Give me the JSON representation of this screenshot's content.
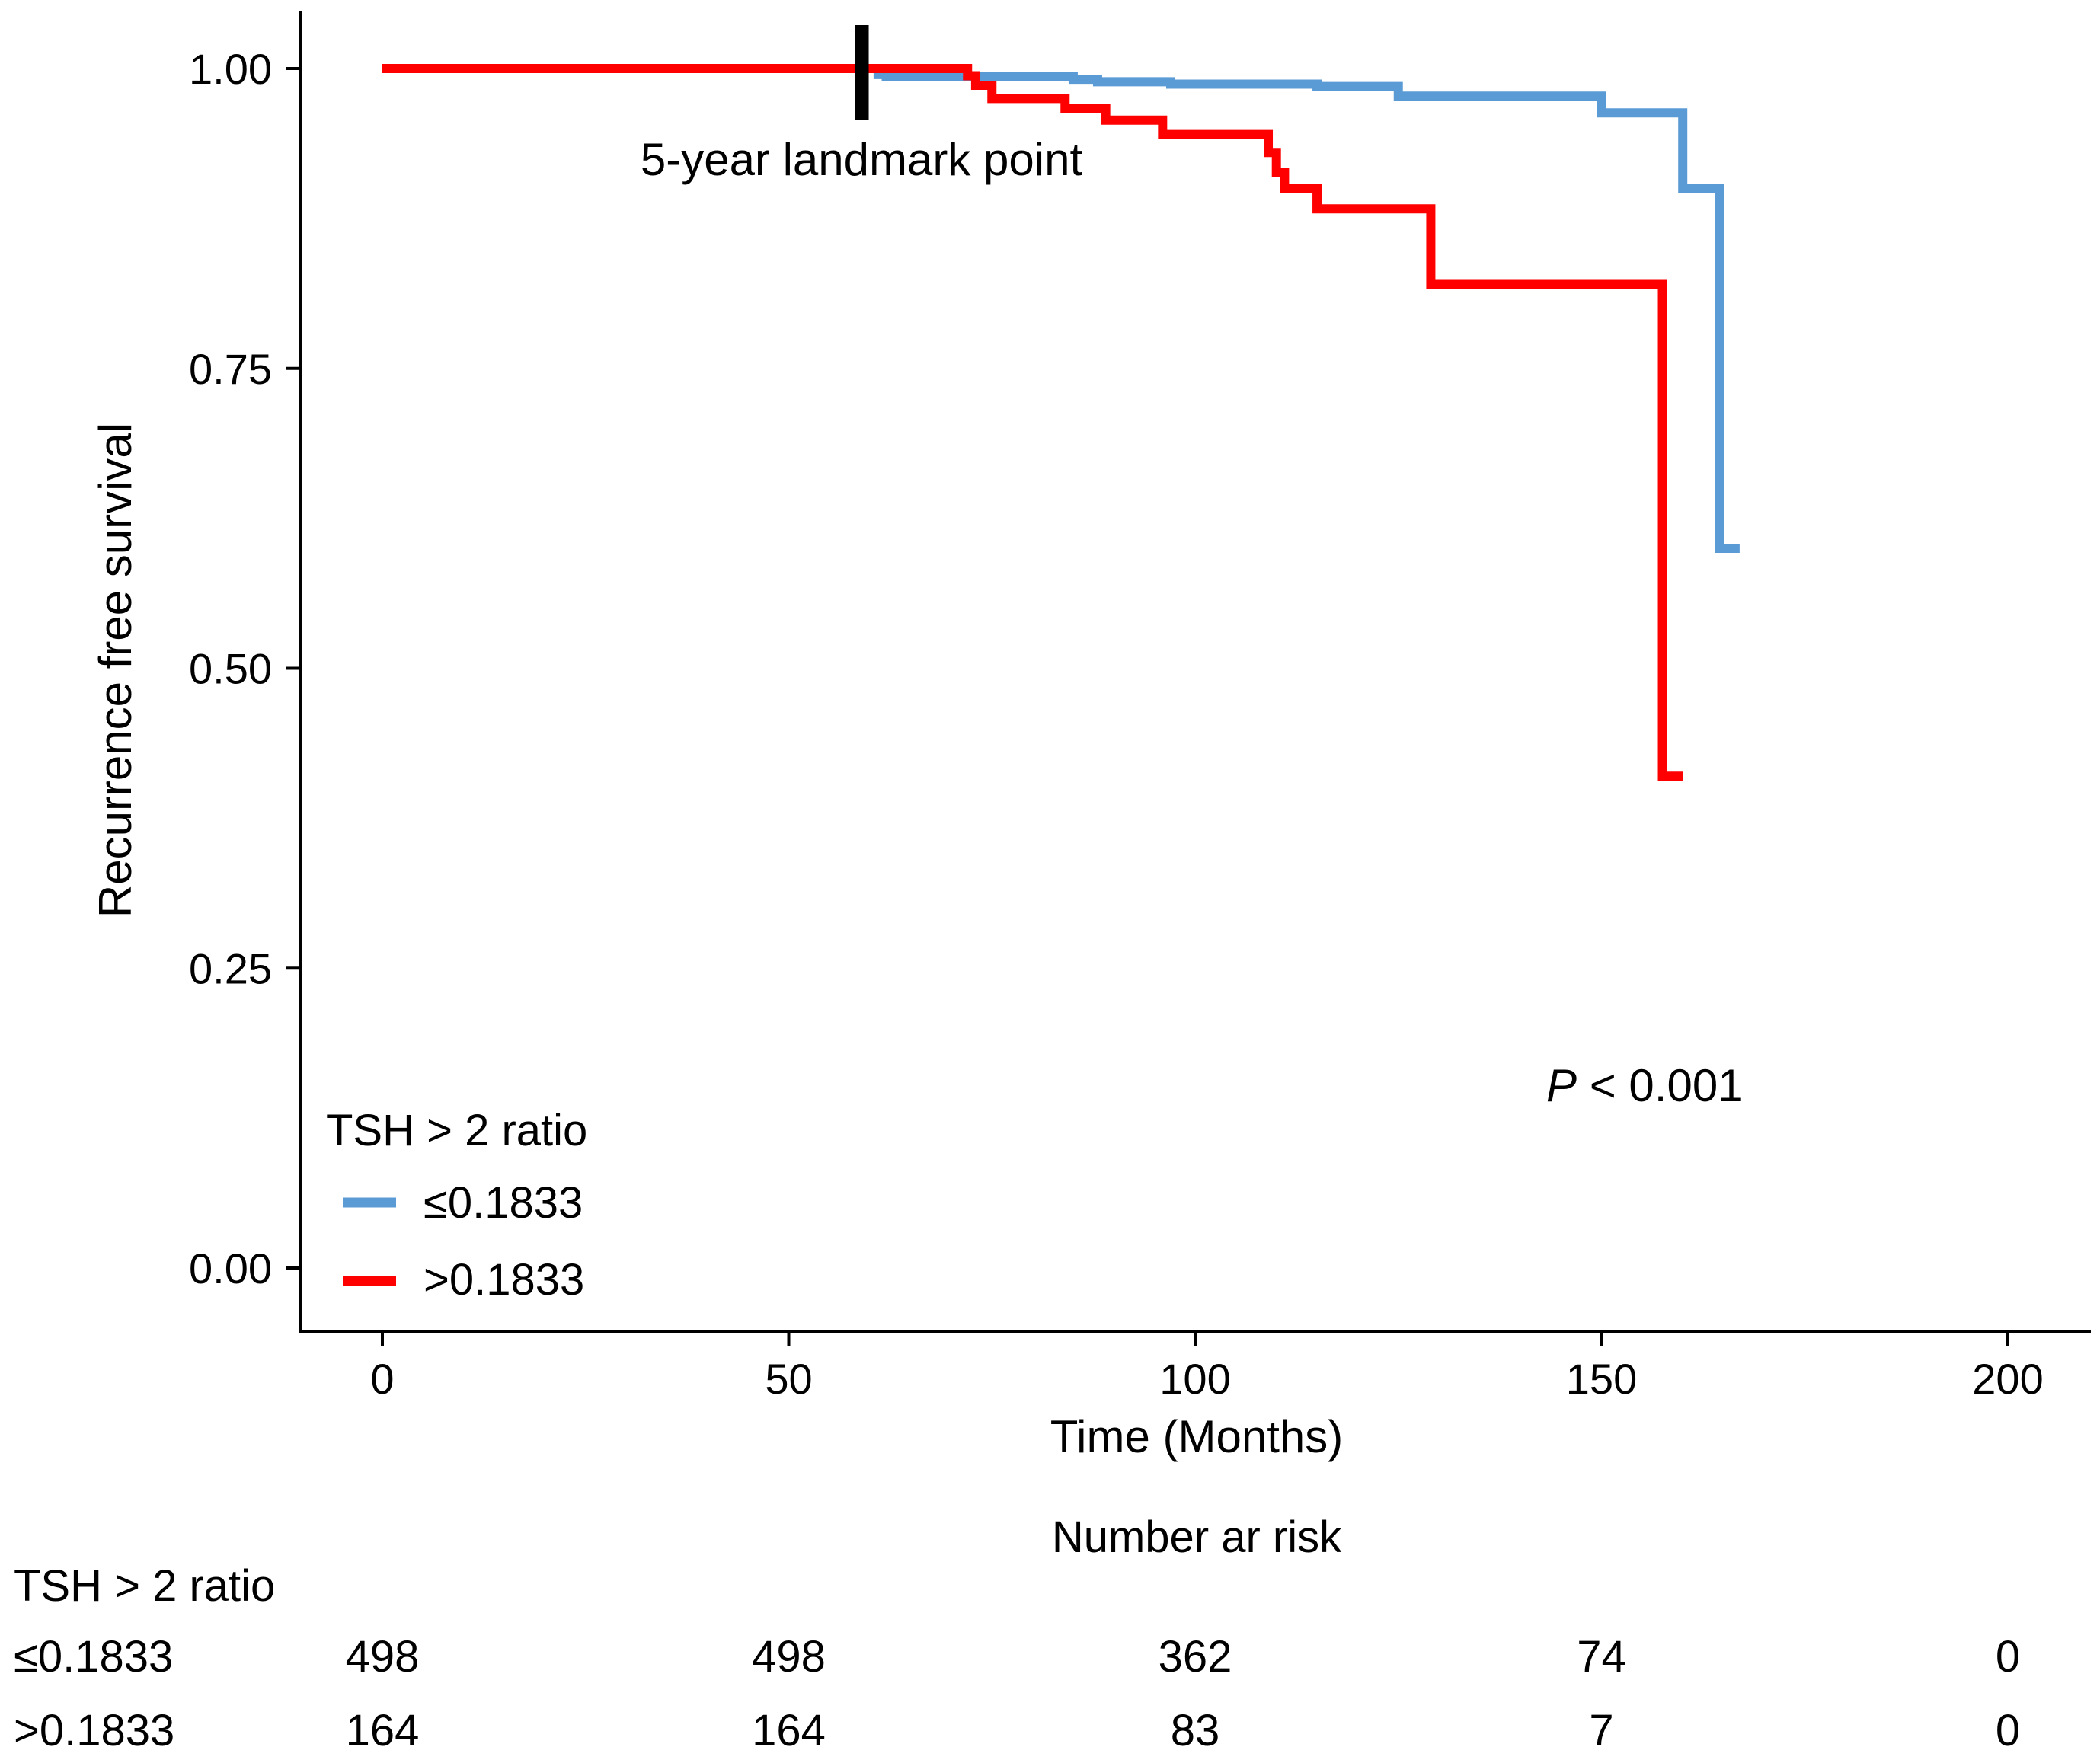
{
  "chart_data": {
    "type": "line",
    "subtype": "kaplan-meier",
    "title": "",
    "xlabel": "Time (Months)",
    "ylabel": "Recurrence free survival",
    "xlim": [
      -10,
      210
    ],
    "ylim": [
      -0.05,
      1.05
    ],
    "xticks": [
      0,
      50,
      100,
      150,
      200
    ],
    "xtick_labels": [
      "0",
      "50",
      "100",
      "150",
      "200"
    ],
    "yticks": [
      0,
      0.25,
      0.5,
      0.75,
      1.0
    ],
    "ytick_labels": [
      "0.00",
      "0.25",
      "0.50",
      "0.75",
      "1.00"
    ],
    "grid": false,
    "landmark": {
      "x": 59,
      "label": "5-year landmark point"
    },
    "pvalue": {
      "prefix": "P",
      "text": " < 0.001"
    },
    "legend": {
      "title": "TSH > 2 ratio",
      "position": "bottom-left"
    },
    "series": [
      {
        "name": "≤0.1833",
        "color": "#5b9bd5",
        "x": [
          0,
          60,
          61,
          62,
          84,
          85,
          88,
          97,
          113,
          115,
          122,
          125,
          147,
          150,
          159.5,
          160,
          164,
          164.5,
          167
        ],
        "y": [
          1.0,
          1.0,
          0.995,
          0.993,
          0.993,
          0.991,
          0.989,
          0.987,
          0.987,
          0.985,
          0.985,
          0.977,
          0.977,
          0.963,
          0.963,
          0.9,
          0.9,
          0.6,
          0.6
        ]
      },
      {
        "name": ">0.1833",
        "color": "#ff0000",
        "x": [
          0,
          68,
          72,
          73,
          75,
          84,
          89,
          96,
          109,
          110,
          111,
          115,
          129,
          157.5,
          160
        ],
        "y": [
          1.0,
          1.0,
          0.994,
          0.986,
          0.975,
          0.967,
          0.957,
          0.945,
          0.93,
          0.913,
          0.9,
          0.883,
          0.82,
          0.41,
          0.41
        ]
      }
    ]
  },
  "risk_table": {
    "title": "Number ar risk",
    "group_label": "TSH > 2 ratio",
    "times": [
      0,
      50,
      100,
      150,
      200
    ],
    "rows": [
      {
        "label": "≤0.1833",
        "values": [
          "498",
          "498",
          "362",
          "74",
          "0"
        ]
      },
      {
        "label": ">0.1833",
        "values": [
          "164",
          "164",
          "83",
          "7",
          "0"
        ]
      }
    ]
  }
}
